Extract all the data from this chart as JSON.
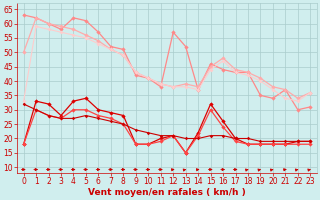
{
  "x": [
    0,
    1,
    2,
    3,
    4,
    5,
    6,
    7,
    8,
    9,
    10,
    11,
    12,
    13,
    14,
    15,
    16,
    17,
    18,
    19,
    20,
    21,
    22,
    23
  ],
  "series": [
    {
      "name": "rafales_line1",
      "color": "#ff8888",
      "linewidth": 0.9,
      "markersize": 2.2,
      "values": [
        63,
        62,
        60,
        58,
        62,
        61,
        57,
        52,
        51,
        42,
        41,
        38,
        57,
        52,
        37,
        46,
        44,
        43,
        43,
        35,
        34,
        37,
        30,
        31
      ]
    },
    {
      "name": "rafales_line2",
      "color": "#ffaaaa",
      "linewidth": 0.9,
      "markersize": 2.2,
      "values": [
        50,
        62,
        60,
        59,
        58,
        56,
        54,
        51,
        49,
        43,
        41,
        39,
        38,
        39,
        38,
        45,
        48,
        44,
        43,
        41,
        38,
        37,
        34,
        36
      ]
    },
    {
      "name": "rafales_trend",
      "color": "#ffcccc",
      "linewidth": 0.8,
      "markersize": 2.0,
      "values": [
        33,
        59,
        58,
        57,
        56,
        55,
        53,
        51,
        49,
        43,
        41,
        39,
        38,
        38,
        37,
        44,
        47,
        43,
        42,
        40,
        37,
        34,
        33,
        36
      ]
    },
    {
      "name": "vent_line1",
      "color": "#dd0000",
      "linewidth": 0.9,
      "markersize": 2.2,
      "values": [
        18,
        33,
        32,
        28,
        33,
        34,
        30,
        29,
        28,
        18,
        18,
        20,
        21,
        15,
        22,
        32,
        26,
        20,
        18,
        18,
        18,
        18,
        19,
        19
      ]
    },
    {
      "name": "vent_line2",
      "color": "#ff4444",
      "linewidth": 0.9,
      "markersize": 2.2,
      "values": [
        18,
        30,
        28,
        27,
        30,
        30,
        28,
        27,
        25,
        18,
        18,
        19,
        21,
        15,
        21,
        30,
        24,
        19,
        18,
        18,
        18,
        18,
        18,
        18
      ]
    },
    {
      "name": "vent_trend",
      "color": "#cc0000",
      "linewidth": 0.8,
      "markersize": 1.8,
      "values": [
        32,
        30,
        28,
        27,
        27,
        28,
        27,
        26,
        25,
        23,
        22,
        21,
        21,
        20,
        20,
        21,
        21,
        20,
        20,
        19,
        19,
        19,
        19,
        19
      ]
    }
  ],
  "arrows": {
    "y_data": 9.2,
    "color": "#cc0000",
    "angles_deg": [
      0,
      0,
      0,
      0,
      0,
      0,
      0,
      0,
      0,
      0,
      0,
      0,
      30,
      45,
      30,
      0,
      0,
      0,
      45,
      45,
      45,
      30,
      45,
      45
    ]
  },
  "xlabel": "Vent moyen/en rafales ( km/h )",
  "xlim": [
    -0.5,
    23.5
  ],
  "ylim": [
    8,
    67
  ],
  "yticks": [
    10,
    15,
    20,
    25,
    30,
    35,
    40,
    45,
    50,
    55,
    60,
    65
  ],
  "xticks": [
    0,
    1,
    2,
    3,
    4,
    5,
    6,
    7,
    8,
    9,
    10,
    11,
    12,
    13,
    14,
    15,
    16,
    17,
    18,
    19,
    20,
    21,
    22,
    23
  ],
  "bg_color": "#d0eeee",
  "grid_color": "#aacccc",
  "axis_color": "#cc0000",
  "label_fontsize": 5.5,
  "xlabel_fontsize": 6.5
}
